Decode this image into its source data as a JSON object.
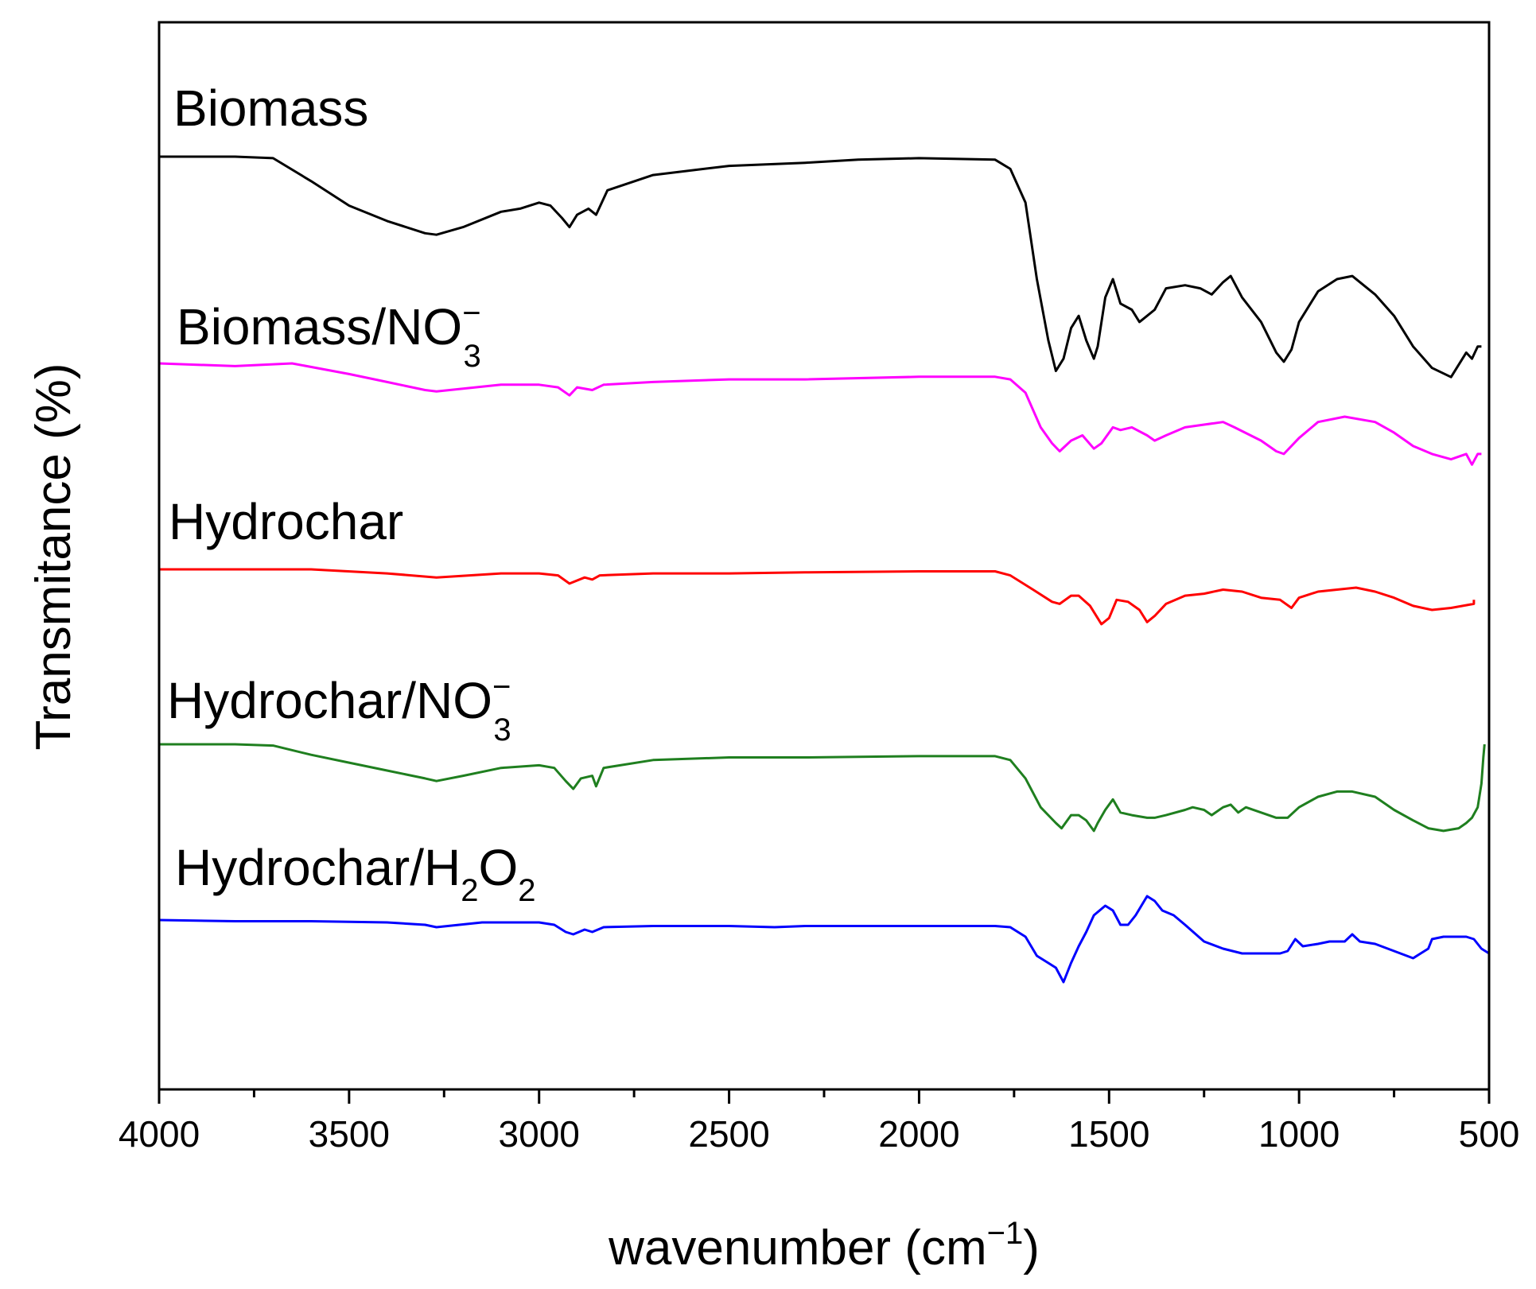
{
  "chart_data": {
    "type": "line",
    "title": "",
    "xlabel": "wavenumber (cm",
    "xlabel_sup": "−1",
    "xlabel_close": ")",
    "ylabel": "Transmitance (%)",
    "xlim": [
      4000,
      500
    ],
    "x_ticks": [
      "4000",
      "3500",
      "3000",
      "2500",
      "2000",
      "1500",
      "1000",
      "500"
    ],
    "grid": false,
    "legend": "inline labels above each curve",
    "series": [
      {
        "name": "Biomass",
        "label": {
          "main": "Biomass",
          "sup": "",
          "sub": "",
          "rest": ""
        },
        "color": "#000000",
        "offset": 0,
        "points": [
          [
            4000,
            100
          ],
          [
            3800,
            100
          ],
          [
            3700,
            99.5
          ],
          [
            3600,
            92
          ],
          [
            3500,
            84
          ],
          [
            3400,
            79
          ],
          [
            3300,
            75
          ],
          [
            3270,
            74.5
          ],
          [
            3200,
            77
          ],
          [
            3100,
            82
          ],
          [
            3050,
            83
          ],
          [
            3000,
            85
          ],
          [
            2970,
            84
          ],
          [
            2940,
            80
          ],
          [
            2920,
            77
          ],
          [
            2900,
            81
          ],
          [
            2870,
            83
          ],
          [
            2850,
            81
          ],
          [
            2820,
            89
          ],
          [
            2700,
            94
          ],
          [
            2500,
            97
          ],
          [
            2300,
            98
          ],
          [
            2160,
            99
          ],
          [
            2000,
            99.5
          ],
          [
            1800,
            99
          ],
          [
            1760,
            96
          ],
          [
            1720,
            85
          ],
          [
            1690,
            60
          ],
          [
            1660,
            40
          ],
          [
            1640,
            30
          ],
          [
            1620,
            34
          ],
          [
            1600,
            44
          ],
          [
            1580,
            48
          ],
          [
            1560,
            40
          ],
          [
            1540,
            34
          ],
          [
            1530,
            38
          ],
          [
            1510,
            54
          ],
          [
            1490,
            60
          ],
          [
            1470,
            52
          ],
          [
            1440,
            50
          ],
          [
            1420,
            46
          ],
          [
            1400,
            48
          ],
          [
            1380,
            50
          ],
          [
            1350,
            57
          ],
          [
            1300,
            58
          ],
          [
            1260,
            57
          ],
          [
            1230,
            55
          ],
          [
            1200,
            59
          ],
          [
            1180,
            61
          ],
          [
            1150,
            54
          ],
          [
            1100,
            46
          ],
          [
            1060,
            36
          ],
          [
            1040,
            33
          ],
          [
            1020,
            37
          ],
          [
            1000,
            46
          ],
          [
            950,
            56
          ],
          [
            900,
            60
          ],
          [
            860,
            61
          ],
          [
            800,
            55
          ],
          [
            750,
            48
          ],
          [
            700,
            38
          ],
          [
            650,
            31
          ],
          [
            600,
            28
          ],
          [
            560,
            36
          ],
          [
            545,
            34
          ],
          [
            530,
            38
          ],
          [
            520,
            38
          ]
        ]
      },
      {
        "name": "Biomass/NO3",
        "label": {
          "main": "Biomass/NO",
          "sup": "−",
          "sub": "3",
          "rest": ""
        },
        "color": "#ff00ff",
        "offset": 0,
        "points": [
          [
            4000,
            100
          ],
          [
            3800,
            99
          ],
          [
            3650,
            100
          ],
          [
            3500,
            96
          ],
          [
            3400,
            93
          ],
          [
            3300,
            90
          ],
          [
            3270,
            89.5
          ],
          [
            3100,
            92
          ],
          [
            3000,
            92
          ],
          [
            2950,
            91
          ],
          [
            2920,
            88
          ],
          [
            2900,
            91
          ],
          [
            2860,
            90
          ],
          [
            2830,
            92
          ],
          [
            2700,
            93
          ],
          [
            2500,
            94
          ],
          [
            2300,
            94
          ],
          [
            2000,
            95
          ],
          [
            1800,
            95
          ],
          [
            1760,
            94
          ],
          [
            1720,
            89
          ],
          [
            1680,
            76
          ],
          [
            1650,
            70
          ],
          [
            1630,
            67
          ],
          [
            1600,
            71
          ],
          [
            1570,
            73
          ],
          [
            1540,
            68
          ],
          [
            1520,
            70
          ],
          [
            1490,
            76
          ],
          [
            1470,
            75
          ],
          [
            1440,
            76
          ],
          [
            1400,
            73
          ],
          [
            1380,
            71
          ],
          [
            1350,
            73
          ],
          [
            1300,
            76
          ],
          [
            1250,
            77
          ],
          [
            1200,
            78
          ],
          [
            1170,
            76
          ],
          [
            1100,
            71
          ],
          [
            1060,
            67
          ],
          [
            1040,
            66
          ],
          [
            1000,
            72
          ],
          [
            950,
            78
          ],
          [
            880,
            80
          ],
          [
            800,
            78
          ],
          [
            750,
            74
          ],
          [
            700,
            69
          ],
          [
            650,
            66
          ],
          [
            600,
            64
          ],
          [
            560,
            66
          ],
          [
            545,
            62
          ],
          [
            530,
            66
          ],
          [
            520,
            66
          ]
        ]
      },
      {
        "name": "Hydrochar",
        "label": {
          "main": "Hydrochar",
          "sup": "",
          "sub": "",
          "rest": ""
        },
        "color": "#ff0000",
        "offset": 0,
        "points": [
          [
            4000,
            100
          ],
          [
            3600,
            100
          ],
          [
            3400,
            98
          ],
          [
            3270,
            96
          ],
          [
            3100,
            98
          ],
          [
            3000,
            98
          ],
          [
            2950,
            97
          ],
          [
            2920,
            93
          ],
          [
            2880,
            96
          ],
          [
            2860,
            95
          ],
          [
            2840,
            97
          ],
          [
            2700,
            98
          ],
          [
            2500,
            98
          ],
          [
            2300,
            98.5
          ],
          [
            2000,
            99
          ],
          [
            1800,
            99
          ],
          [
            1760,
            97
          ],
          [
            1700,
            90
          ],
          [
            1650,
            84
          ],
          [
            1630,
            83
          ],
          [
            1600,
            87
          ],
          [
            1580,
            87
          ],
          [
            1550,
            82
          ],
          [
            1520,
            73
          ],
          [
            1500,
            76
          ],
          [
            1480,
            85
          ],
          [
            1450,
            84
          ],
          [
            1420,
            80
          ],
          [
            1400,
            74
          ],
          [
            1380,
            77
          ],
          [
            1350,
            83
          ],
          [
            1300,
            87
          ],
          [
            1250,
            88
          ],
          [
            1200,
            90
          ],
          [
            1150,
            89
          ],
          [
            1100,
            86
          ],
          [
            1050,
            85
          ],
          [
            1020,
            81
          ],
          [
            1000,
            86
          ],
          [
            950,
            89
          ],
          [
            900,
            90
          ],
          [
            850,
            91
          ],
          [
            800,
            89
          ],
          [
            750,
            86
          ],
          [
            700,
            82
          ],
          [
            650,
            80
          ],
          [
            600,
            81
          ],
          [
            540,
            83
          ],
          [
            540,
            85
          ]
        ]
      },
      {
        "name": "Hydrochar/NO3",
        "label": {
          "main": "Hydrochar/NO",
          "sup": "−",
          "sub": "3",
          "rest": ""
        },
        "color": "#1f7f1f",
        "offset": 0,
        "points": [
          [
            4000,
            100
          ],
          [
            3800,
            100
          ],
          [
            3700,
            99.5
          ],
          [
            3600,
            96
          ],
          [
            3500,
            93
          ],
          [
            3400,
            90
          ],
          [
            3300,
            87
          ],
          [
            3270,
            86
          ],
          [
            3200,
            88
          ],
          [
            3100,
            91
          ],
          [
            3000,
            92
          ],
          [
            2960,
            91
          ],
          [
            2930,
            86
          ],
          [
            2910,
            83
          ],
          [
            2890,
            87
          ],
          [
            2860,
            88
          ],
          [
            2850,
            84
          ],
          [
            2830,
            91
          ],
          [
            2700,
            94
          ],
          [
            2500,
            95
          ],
          [
            2300,
            95
          ],
          [
            2000,
            95.5
          ],
          [
            1800,
            95.5
          ],
          [
            1760,
            94
          ],
          [
            1720,
            87
          ],
          [
            1680,
            76
          ],
          [
            1640,
            70
          ],
          [
            1625,
            68
          ],
          [
            1600,
            73
          ],
          [
            1580,
            73
          ],
          [
            1560,
            71
          ],
          [
            1540,
            67
          ],
          [
            1530,
            70
          ],
          [
            1510,
            75
          ],
          [
            1490,
            79
          ],
          [
            1470,
            74
          ],
          [
            1440,
            73
          ],
          [
            1400,
            72
          ],
          [
            1380,
            72
          ],
          [
            1350,
            73
          ],
          [
            1300,
            75
          ],
          [
            1280,
            76
          ],
          [
            1250,
            75
          ],
          [
            1230,
            73
          ],
          [
            1200,
            76
          ],
          [
            1180,
            77
          ],
          [
            1160,
            74
          ],
          [
            1140,
            76
          ],
          [
            1100,
            74
          ],
          [
            1060,
            72
          ],
          [
            1030,
            72
          ],
          [
            1000,
            76
          ],
          [
            950,
            80
          ],
          [
            900,
            82
          ],
          [
            860,
            82
          ],
          [
            800,
            80
          ],
          [
            750,
            75
          ],
          [
            700,
            71
          ],
          [
            660,
            68
          ],
          [
            620,
            67
          ],
          [
            580,
            68
          ],
          [
            560,
            70
          ],
          [
            545,
            72
          ],
          [
            530,
            76
          ],
          [
            520,
            85
          ],
          [
            515,
            95
          ],
          [
            512,
            100
          ]
        ]
      },
      {
        "name": "Hydrochar/H2O2",
        "label": {
          "main": "Hydrochar/H",
          "sup": "",
          "sub": "2",
          "rest": "O"
        },
        "color": "#0000ff",
        "offset": 0,
        "points": [
          [
            4000,
            100
          ],
          [
            3800,
            99.5
          ],
          [
            3600,
            99.5
          ],
          [
            3400,
            99
          ],
          [
            3300,
            98
          ],
          [
            3270,
            97
          ],
          [
            3150,
            99
          ],
          [
            3000,
            99
          ],
          [
            2960,
            98
          ],
          [
            2930,
            95
          ],
          [
            2910,
            94
          ],
          [
            2880,
            96
          ],
          [
            2860,
            95
          ],
          [
            2830,
            97
          ],
          [
            2700,
            97.5
          ],
          [
            2500,
            97.5
          ],
          [
            2380,
            97
          ],
          [
            2300,
            97.5
          ],
          [
            2000,
            97.5
          ],
          [
            1800,
            97.5
          ],
          [
            1760,
            97
          ],
          [
            1720,
            93
          ],
          [
            1690,
            85
          ],
          [
            1660,
            82
          ],
          [
            1640,
            80
          ],
          [
            1630,
            77
          ],
          [
            1620,
            74
          ],
          [
            1600,
            82
          ],
          [
            1580,
            89
          ],
          [
            1560,
            95
          ],
          [
            1540,
            102
          ],
          [
            1510,
            106
          ],
          [
            1490,
            104
          ],
          [
            1470,
            98
          ],
          [
            1450,
            98
          ],
          [
            1430,
            102
          ],
          [
            1400,
            110
          ],
          [
            1380,
            108
          ],
          [
            1360,
            104
          ],
          [
            1330,
            102
          ],
          [
            1300,
            98
          ],
          [
            1250,
            91
          ],
          [
            1200,
            88
          ],
          [
            1150,
            86
          ],
          [
            1100,
            86
          ],
          [
            1050,
            86
          ],
          [
            1030,
            87
          ],
          [
            1010,
            92
          ],
          [
            990,
            89
          ],
          [
            950,
            90
          ],
          [
            920,
            91
          ],
          [
            880,
            91
          ],
          [
            860,
            94
          ],
          [
            840,
            91
          ],
          [
            800,
            90
          ],
          [
            750,
            87
          ],
          [
            700,
            84
          ],
          [
            680,
            86
          ],
          [
            660,
            88
          ],
          [
            650,
            92
          ],
          [
            620,
            93
          ],
          [
            600,
            93
          ],
          [
            560,
            93
          ],
          [
            540,
            92
          ],
          [
            520,
            88
          ],
          [
            500,
            86
          ]
        ]
      }
    ]
  }
}
